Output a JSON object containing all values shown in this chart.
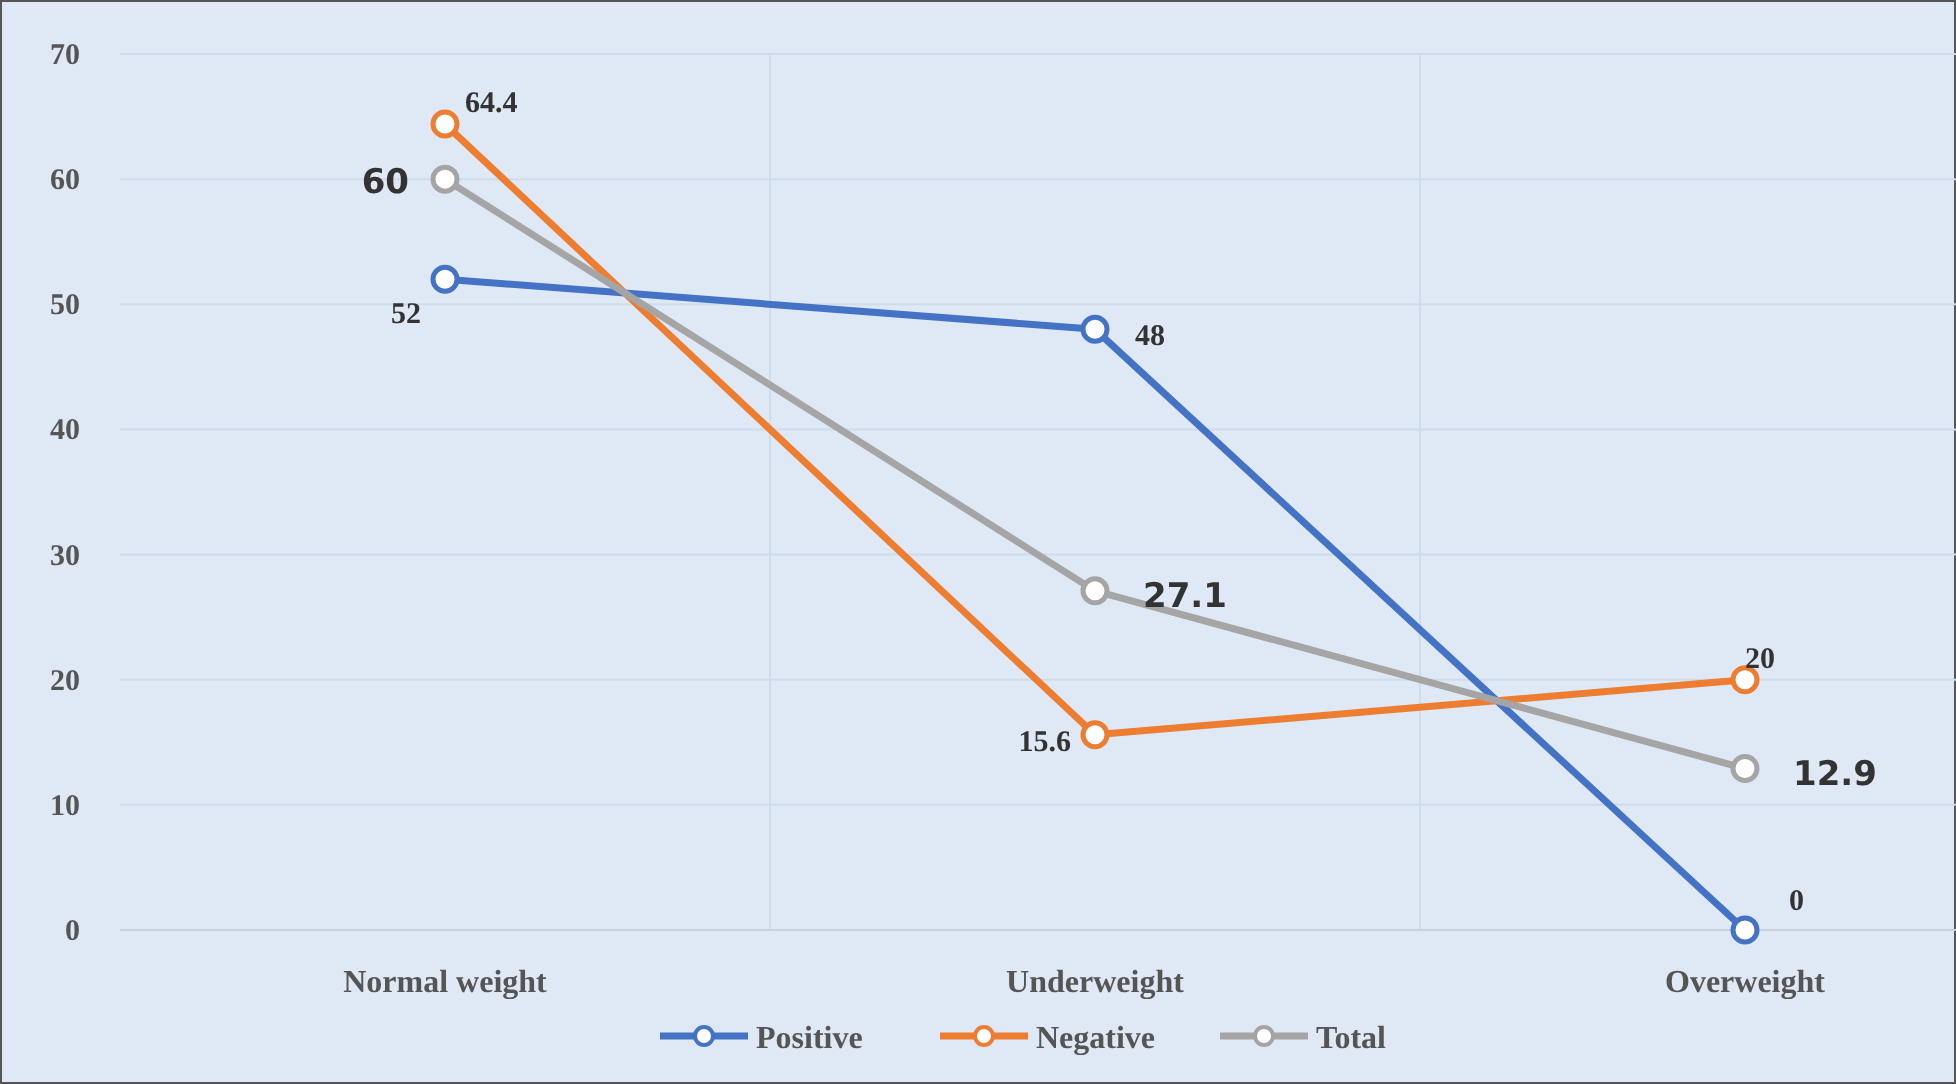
{
  "chart_data": {
    "type": "line",
    "categories": [
      "Normal weight",
      "Underweight",
      "Overweight"
    ],
    "series": [
      {
        "name": "Positive",
        "color": "#4472c4",
        "values": [
          52,
          48,
          0
        ]
      },
      {
        "name": "Negative",
        "color": "#ed7d31",
        "values": [
          64.4,
          15.6,
          20
        ]
      },
      {
        "name": "Total",
        "color": "#a5a5a5",
        "values": [
          60,
          27.1,
          12.9
        ]
      }
    ],
    "ylim": [
      0,
      70
    ],
    "yticks": [
      0,
      10,
      20,
      30,
      40,
      50,
      60,
      70
    ],
    "grid": true,
    "legend": "bottom",
    "marker": "circle",
    "line_style": "solid",
    "data_labels": true
  }
}
